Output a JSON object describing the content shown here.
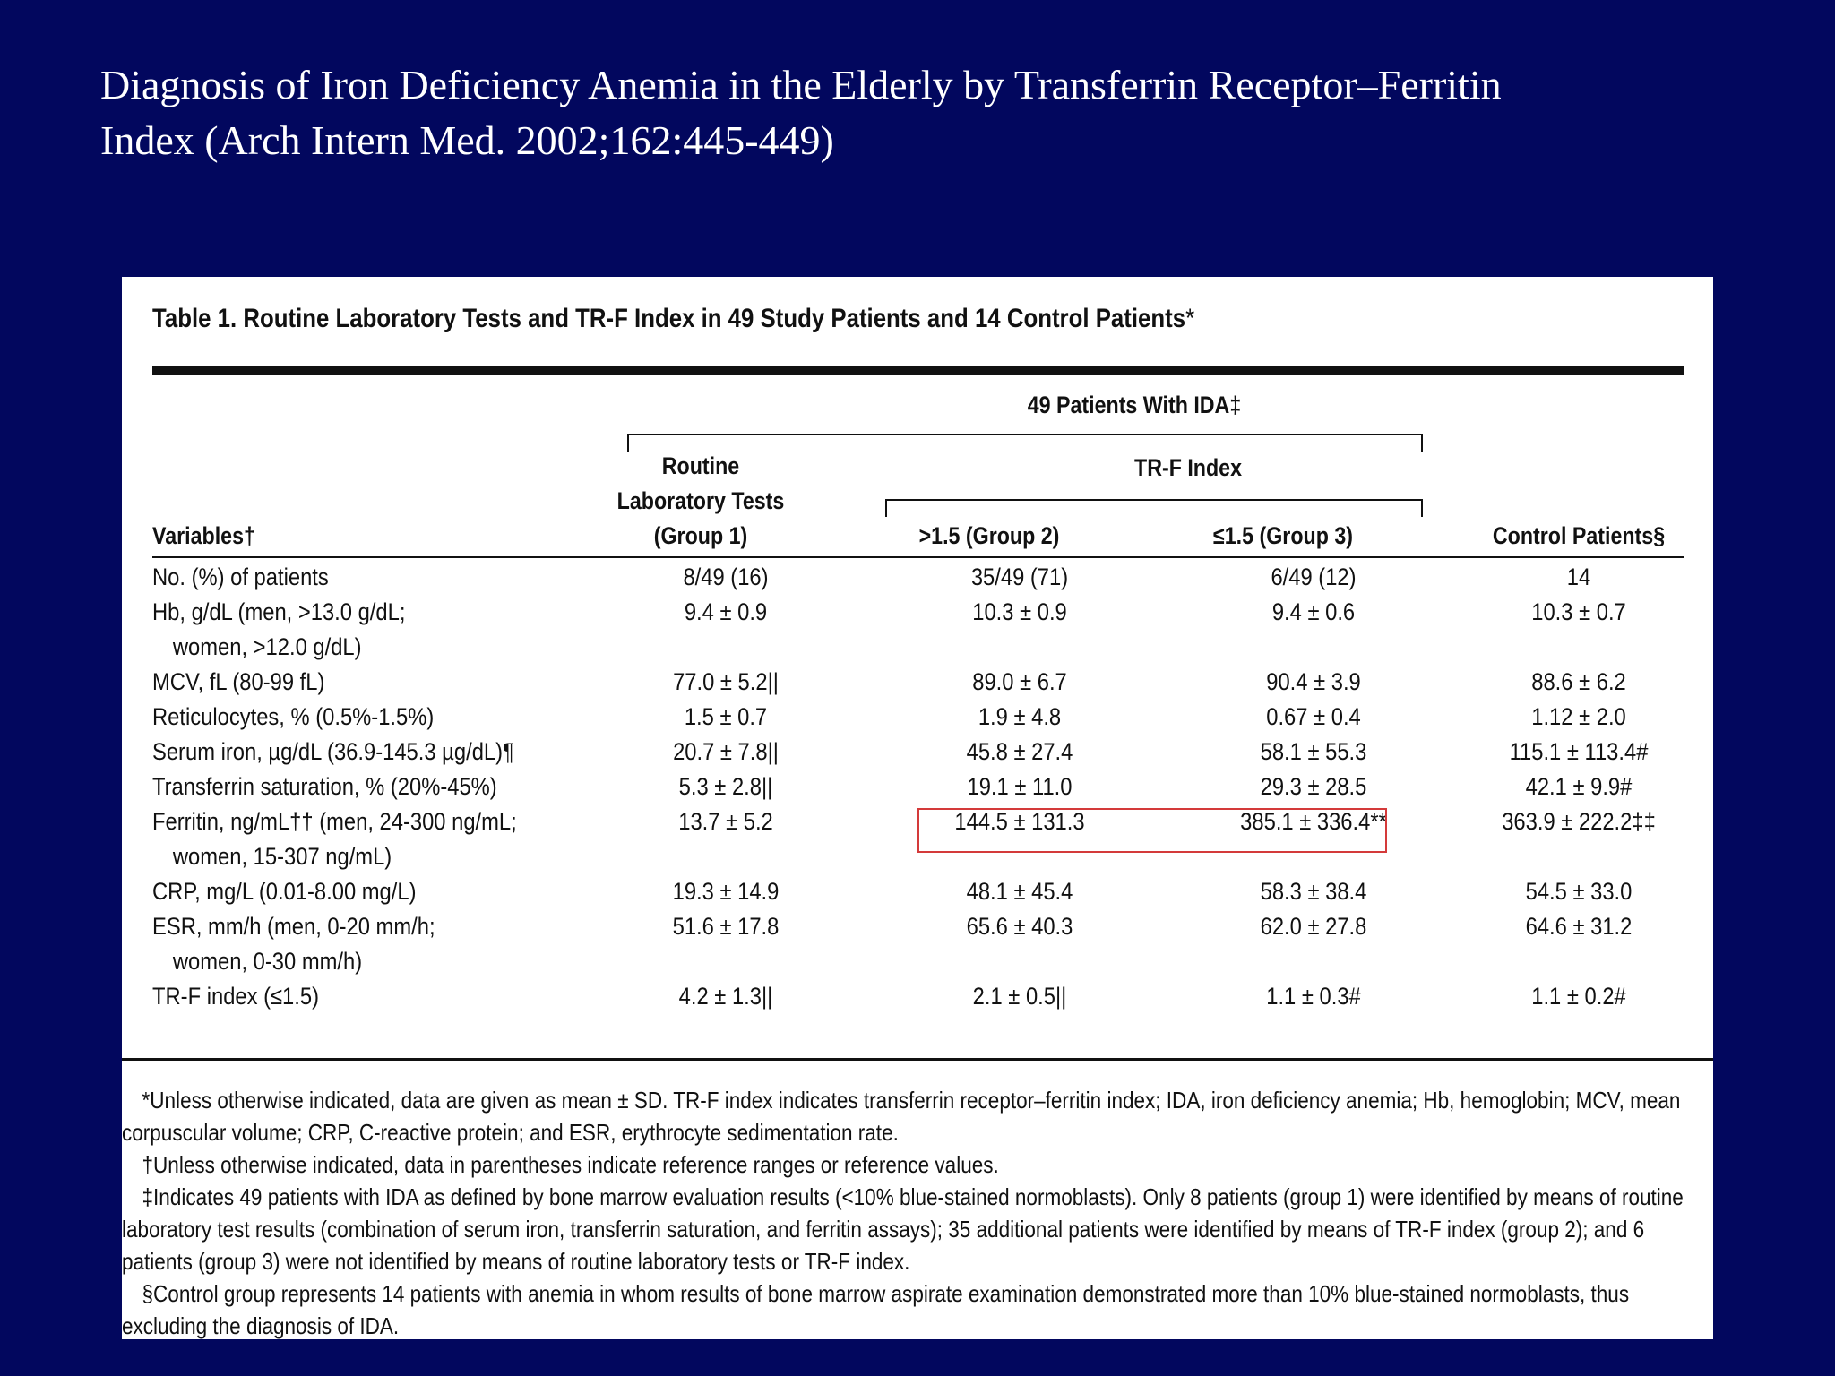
{
  "slide": {
    "title_line1": "Diagnosis of Iron Deficiency Anemia in the Elderly by Transferrin Receptor–Ferritin",
    "title_line2": "Index  (Arch Intern Med. 2002;162:445-449)"
  },
  "table": {
    "caption": "Table 1. Routine Laboratory Tests and TR-F Index in 49 Study Patients and 14 Control Patients",
    "caption_mark": "*",
    "group_header": "49 Patients With IDA‡",
    "trf_header": "TR-F Index",
    "col_variables": "Variables†",
    "col_group1_line1": "Routine",
    "col_group1_line2": "Laboratory Tests",
    "col_group1_line3": "(Group 1)",
    "col_group2": ">1.5 (Group 2)",
    "col_group3": "≤1.5 (Group 3)",
    "col_control": "Control Patients§",
    "rows": [
      {
        "label": "No. (%) of patients",
        "label2": "",
        "g1": "8/49 (16)",
        "g2": "35/49 (71)",
        "g3": "6/49 (12)",
        "ctrl": "14"
      },
      {
        "label": "Hb, g/dL (men, >13.0 g/dL;",
        "label2": "women, >12.0 g/dL)",
        "g1": "9.4 ± 0.9",
        "g2": "10.3 ± 0.9",
        "g3": "9.4 ± 0.6",
        "ctrl": "10.3 ± 0.7"
      },
      {
        "label": "MCV, fL (80-99 fL)",
        "label2": "",
        "g1": "77.0 ± 5.2||",
        "g2": "89.0 ± 6.7",
        "g3": "90.4 ± 3.9",
        "ctrl": "88.6 ± 6.2"
      },
      {
        "label": "Reticulocytes, % (0.5%-1.5%)",
        "label2": "",
        "g1": "1.5 ± 0.7",
        "g2": "1.9 ± 4.8",
        "g3": "0.67 ± 0.4",
        "ctrl": "1.12 ± 2.0"
      },
      {
        "label": "Serum iron, µg/dL (36.9-145.3 µg/dL)¶",
        "label2": "",
        "g1": "20.7 ± 7.8||",
        "g2": "45.8 ± 27.4",
        "g3": "58.1 ± 55.3",
        "ctrl": "115.1 ± 113.4#"
      },
      {
        "label": "Transferrin saturation, % (20%-45%)",
        "label2": "",
        "g1": "5.3 ± 2.8||",
        "g2": "19.1 ± 11.0",
        "g3": "29.3 ± 28.5",
        "ctrl": "42.1 ± 9.9#"
      },
      {
        "label": "Ferritin, ng/mL†† (men, 24-300 ng/mL;",
        "label2": "women, 15-307 ng/mL)",
        "g1": "13.7 ± 5.2",
        "g2": "144.5 ± 131.3",
        "g3": "385.1 ± 336.4**",
        "ctrl": "363.9 ± 222.2‡‡"
      },
      {
        "label": "CRP, mg/L (0.01-8.00 mg/L)",
        "label2": "",
        "g1": "19.3 ± 14.9",
        "g2": "48.1 ± 45.4",
        "g3": "58.3 ± 38.4",
        "ctrl": "54.5 ± 33.0"
      },
      {
        "label": "ESR, mm/h (men, 0-20 mm/h;",
        "label2": "women, 0-30 mm/h)",
        "g1": "51.6 ± 17.8",
        "g2": "65.6 ± 40.3",
        "g3": "62.0 ± 27.8",
        "ctrl": "64.6 ± 31.2"
      },
      {
        "label": "TR-F index (≤1.5)",
        "label2": "",
        "g1": "4.2 ± 1.3||",
        "g2": "2.1 ± 0.5||",
        "g3": "1.1 ± 0.3#",
        "ctrl": "1.1 ± 0.2#"
      }
    ],
    "footnotes": [
      "*Unless otherwise indicated, data are given as mean ± SD. TR-F index indicates transferrin receptor–ferritin index; IDA, iron deficiency anemia; Hb, hemoglobin; MCV, mean corpuscular volume; CRP, C-reactive protein; and ESR, erythrocyte sedimentation rate.",
      "†Unless otherwise indicated, data in parentheses indicate reference ranges or reference values.",
      "‡Indicates 49 patients with IDA as defined by bone marrow evaluation results (<10% blue-stained normoblasts). Only 8 patients (group 1) were identified by means of routine laboratory test results (combination of serum iron, transferrin saturation, and ferritin assays); 35 additional patients were identified by means of TR-F index (group 2); and 6 patients (group 3) were not identified by means of routine laboratory tests or TR-F index.",
      "§Control group represents 14 patients with anemia in whom results of bone marrow aspirate examination demonstrated more than 10% blue-stained normoblasts, thus excluding the diagnosis of IDA."
    ]
  },
  "colors": {
    "background": "#02075e",
    "highlight": "#d43a3a"
  }
}
